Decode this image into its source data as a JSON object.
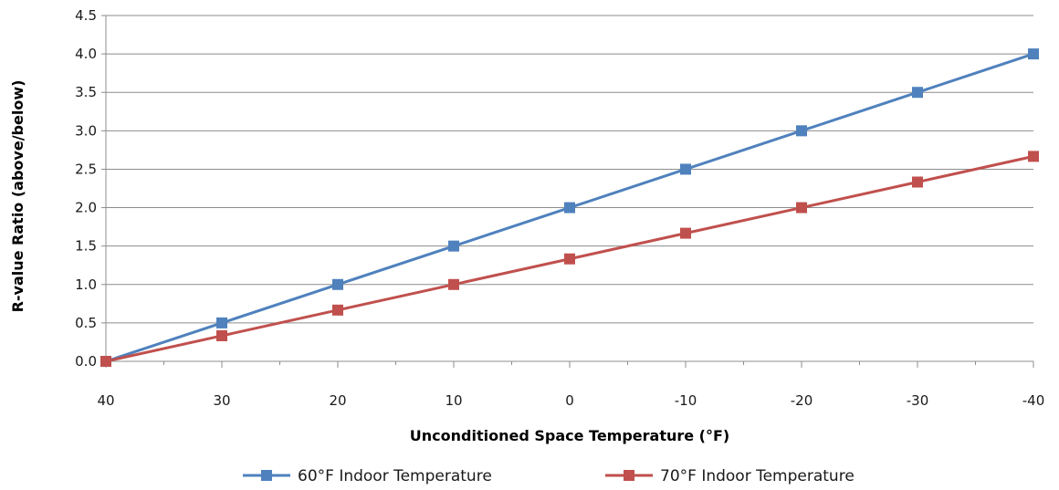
{
  "chart_data": {
    "type": "line",
    "xlabel": "Unconditioned Space Temperature (°F)",
    "ylabel": "R-value Ratio (above/below)",
    "x": [
      40,
      30,
      20,
      10,
      0,
      -10,
      -20,
      -30,
      -40
    ],
    "x_tick_labels": [
      "40",
      "30",
      "20",
      "10",
      "0",
      "-10",
      "-20",
      "-30",
      "-40"
    ],
    "xlim": [
      40,
      -40
    ],
    "ylim": [
      0,
      4.5
    ],
    "y_ticks": [
      0,
      0.5,
      1,
      1.5,
      2,
      2.5,
      3,
      3.5,
      4,
      4.5
    ],
    "y_tick_labels": [
      "0.0",
      "0.5",
      "1.0",
      "1.5",
      "2.0",
      "2.5",
      "3.0",
      "3.5",
      "4.0",
      "4.5"
    ],
    "grid": "horizontal",
    "legend_position": "bottom",
    "series": [
      {
        "name": "60°F Indoor Temperature",
        "color": "#4f81bd",
        "values": [
          0,
          0.5,
          1.0,
          1.5,
          2.0,
          2.5,
          3.0,
          3.5,
          4.0
        ]
      },
      {
        "name": "70°F Indoor Temperature",
        "color": "#c0504d",
        "values": [
          0,
          0.333,
          0.667,
          1.0,
          1.333,
          1.667,
          2.0,
          2.333,
          2.667
        ]
      }
    ]
  }
}
